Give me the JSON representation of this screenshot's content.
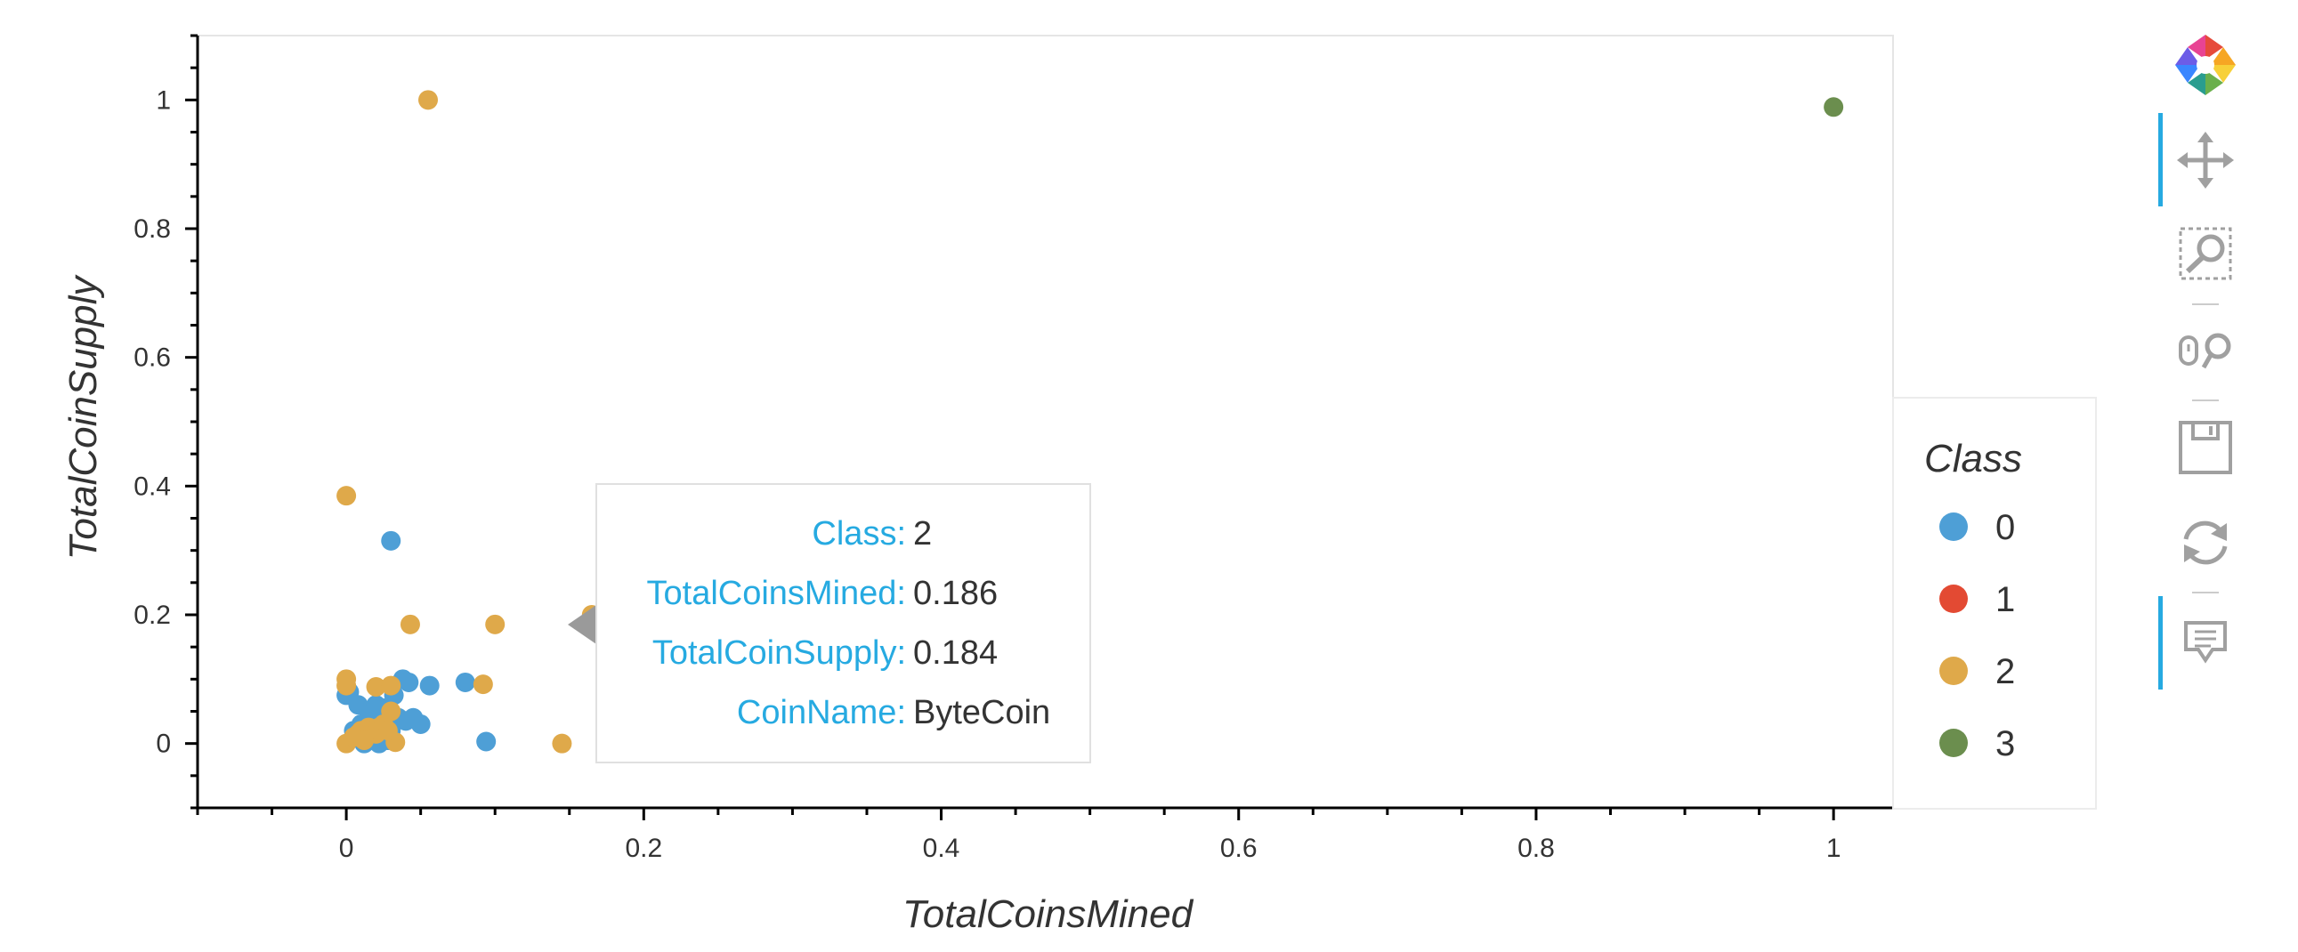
{
  "chart_data": {
    "type": "scatter",
    "title": "",
    "xlabel": "TotalCoinsMined",
    "ylabel": "TotalCoinSupply",
    "xlim": [
      -0.1,
      1.04
    ],
    "ylim": [
      -0.1,
      1.1
    ],
    "x_ticks": [
      0,
      0.2,
      0.4,
      0.6,
      0.8,
      1
    ],
    "x_tick_labels": [
      "0",
      "0.2",
      "0.4",
      "0.6",
      "0.8",
      "1"
    ],
    "y_ticks": [
      0,
      0.2,
      0.4,
      0.6,
      0.8,
      1
    ],
    "y_tick_labels": [
      "0",
      "0.2",
      "0.4",
      "0.6",
      "0.8",
      "1"
    ],
    "grid": false,
    "legend": {
      "title": "Class",
      "placement": "right",
      "entries": [
        {
          "label": "0",
          "color": "#4e9fd6"
        },
        {
          "label": "1",
          "color": "#e34a33"
        },
        {
          "label": "2",
          "color": "#dfa94a"
        },
        {
          "label": "3",
          "color": "#6b8e4e"
        }
      ]
    },
    "series": [
      {
        "name": "0",
        "color": "#4e9fd6",
        "points": [
          [
            0.0,
            0.075
          ],
          [
            0.002,
            0.08
          ],
          [
            0.005,
            0.02
          ],
          [
            0.008,
            0.06
          ],
          [
            0.01,
            0.03
          ],
          [
            0.012,
            0.0
          ],
          [
            0.015,
            0.05
          ],
          [
            0.018,
            0.01
          ],
          [
            0.02,
            0.03
          ],
          [
            0.022,
            0.0
          ],
          [
            0.025,
            0.055
          ],
          [
            0.028,
            0.005
          ],
          [
            0.03,
            0.02
          ],
          [
            0.032,
            0.075
          ],
          [
            0.035,
            0.04
          ],
          [
            0.038,
            0.1
          ],
          [
            0.04,
            0.035
          ],
          [
            0.042,
            0.095
          ],
          [
            0.045,
            0.04
          ],
          [
            0.05,
            0.03
          ],
          [
            0.056,
            0.09
          ],
          [
            0.08,
            0.095
          ],
          [
            0.094,
            0.003
          ],
          [
            0.03,
            0.315
          ],
          [
            0.02,
            0.06
          ]
        ]
      },
      {
        "name": "2",
        "color": "#dfa94a",
        "points": [
          [
            0.055,
            1.0
          ],
          [
            0.0,
            0.385
          ],
          [
            0.043,
            0.185
          ],
          [
            0.1,
            0.185
          ],
          [
            0.165,
            0.2
          ],
          [
            0.186,
            0.184
          ],
          [
            0.0,
            0.1
          ],
          [
            0.0,
            0.09
          ],
          [
            0.02,
            0.088
          ],
          [
            0.03,
            0.09
          ],
          [
            0.092,
            0.092
          ],
          [
            0.03,
            0.05
          ],
          [
            0.145,
            0.0
          ],
          [
            0.033,
            0.002
          ],
          [
            0.0,
            0.0
          ],
          [
            0.005,
            0.01
          ],
          [
            0.008,
            0.015
          ],
          [
            0.01,
            0.02
          ],
          [
            0.015,
            0.025
          ],
          [
            0.018,
            0.02
          ],
          [
            0.02,
            0.015
          ],
          [
            0.022,
            0.025
          ],
          [
            0.025,
            0.03
          ],
          [
            0.012,
            0.005
          ],
          [
            0.028,
            0.02
          ]
        ]
      },
      {
        "name": "3",
        "color": "#6b8e4e",
        "points": [
          [
            1.0,
            0.989
          ]
        ]
      }
    ],
    "hover_point": [
      0.186,
      0.184
    ]
  },
  "tooltip": {
    "rows": [
      {
        "key": "Class:",
        "value": "2"
      },
      {
        "key": "TotalCoinsMined:",
        "value": "0.186"
      },
      {
        "key": "TotalCoinSupply:",
        "value": "0.184"
      },
      {
        "key": "CoinName:",
        "value": "ByteCoin"
      }
    ]
  },
  "toolbar": {
    "tools": [
      {
        "icon": "bokeh-logo-icon",
        "active": false
      },
      {
        "icon": "pan-icon",
        "active": true
      },
      {
        "icon": "box-zoom-icon",
        "active": false
      },
      {
        "icon": "wheel-zoom-icon",
        "active": false
      },
      {
        "icon": "save-icon",
        "active": false
      },
      {
        "icon": "reset-icon",
        "active": false
      },
      {
        "icon": "hover-icon",
        "active": true
      }
    ],
    "accent_color": "#26aae1",
    "icon_color": "#a0a0a0"
  }
}
